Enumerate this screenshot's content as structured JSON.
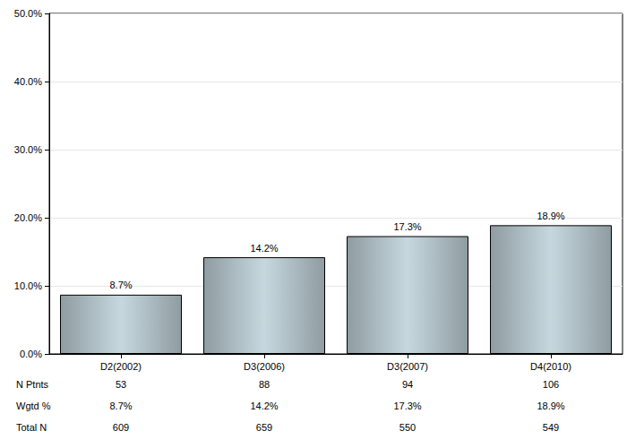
{
  "chart_data": {
    "type": "bar",
    "categories": [
      "D2(2002)",
      "D3(2006)",
      "D3(2007)",
      "D4(2010)"
    ],
    "values": [
      8.7,
      14.2,
      17.3,
      18.9
    ],
    "value_labels": [
      "8.7%",
      "14.2%",
      "17.3%",
      "18.9%"
    ],
    "data_labels": true,
    "color": "#c6d8df",
    "ylim": [
      0,
      50
    ],
    "yticks": [
      {
        "value": 0,
        "label": "0.0%"
      },
      {
        "value": 10,
        "label": "10.0%"
      },
      {
        "value": 20,
        "label": "20.0%"
      },
      {
        "value": 30,
        "label": "30.0%"
      },
      {
        "value": 40,
        "label": "40.0%"
      },
      {
        "value": 50,
        "label": "50.0%"
      }
    ],
    "grid": true,
    "table_rows": [
      {
        "label": "N Ptnts",
        "cells": [
          53,
          88,
          94,
          106
        ]
      },
      {
        "label": "Wgtd %",
        "cells": [
          "8.7%",
          "14.2%",
          "17.3%",
          "18.9%"
        ]
      },
      {
        "label": "Total N",
        "cells": [
          609,
          659,
          550,
          549
        ]
      }
    ]
  }
}
